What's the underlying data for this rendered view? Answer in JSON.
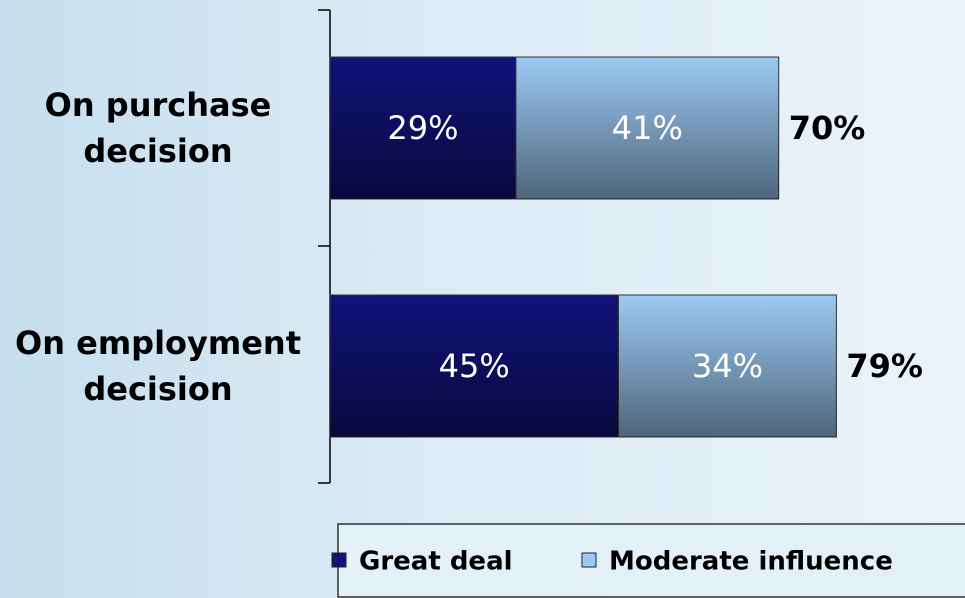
{
  "chart_data": {
    "type": "stacked-barh",
    "categories": [
      "On purchase decision",
      "On employment decision"
    ],
    "series": [
      {
        "name": "Great deal",
        "color": "#12127a",
        "values": [
          29,
          45
        ],
        "value_labels": [
          "29%",
          "45%"
        ]
      },
      {
        "name": "Moderate influence",
        "color": "#9ccaf4",
        "values": [
          41,
          34
        ],
        "value_labels": [
          "41%",
          "34%"
        ]
      }
    ],
    "totals": [
      70,
      79
    ],
    "total_labels": [
      "70%",
      "79%"
    ],
    "legend": "bottom"
  }
}
